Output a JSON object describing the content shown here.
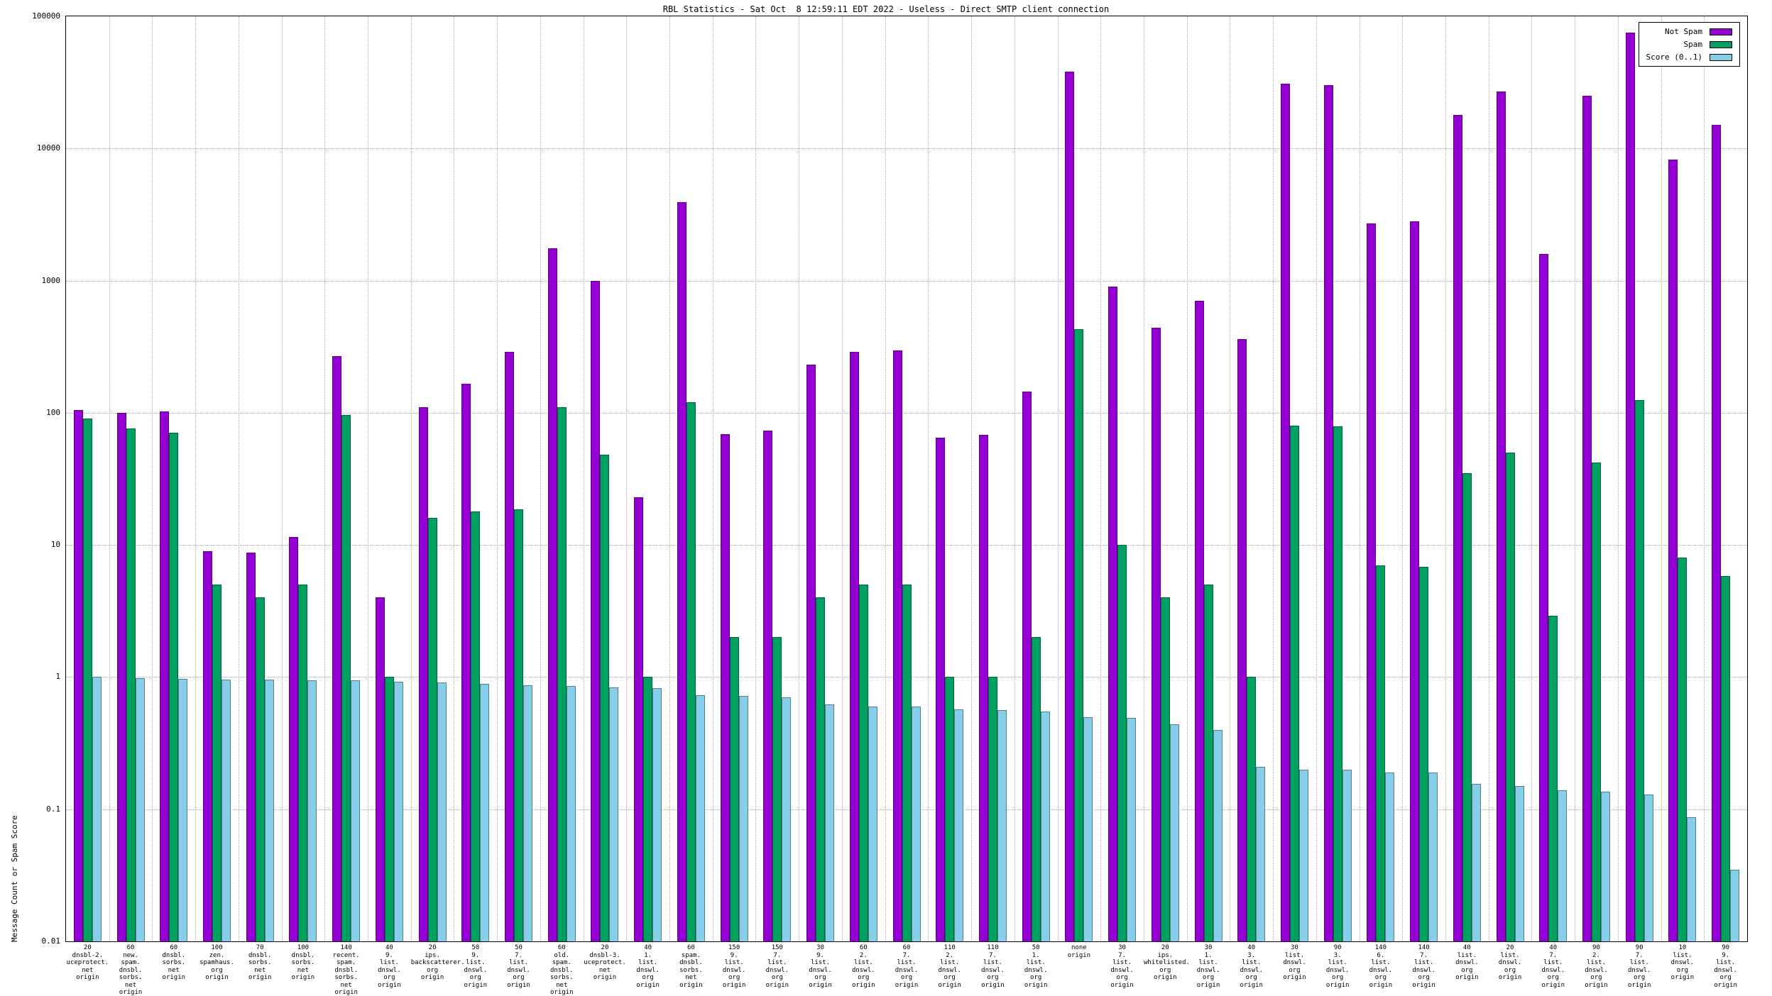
{
  "chart_data": {
    "type": "bar",
    "title": "RBL Statistics - Sat Oct  8 12:59:11 EDT 2022 - Useless - Direct SMTP client connection",
    "ylabel": "Message Count or Spam Score",
    "xlabel": "",
    "scale": "log",
    "ylim": [
      0.01,
      100000
    ],
    "yticks": [
      "100000",
      "10000",
      "1000",
      "100",
      "10",
      "1",
      "0.1",
      "0.01"
    ],
    "grid": true,
    "legend_position": "top-right",
    "categories": [
      [
        "20",
        "dnsbl-2.",
        "uceprotect.",
        "net",
        "origin"
      ],
      [
        "60",
        "new.",
        "spam.",
        "dnsbl.",
        "sorbs.",
        "net",
        "origin"
      ],
      [
        "60",
        "dnsbl.",
        "sorbs.",
        "net",
        "origin"
      ],
      [
        "100",
        "zen.",
        "spamhaus.",
        "org",
        "origin"
      ],
      [
        "70",
        "dnsbl.",
        "sorbs.",
        "net",
        "origin"
      ],
      [
        "100",
        "dnsbl.",
        "sorbs.",
        "net",
        "origin"
      ],
      [
        "140",
        "recent.",
        "spam.",
        "dnsbl.",
        "sorbs.",
        "net",
        "origin"
      ],
      [
        "40",
        "9.",
        "list.",
        "dnswl.",
        "org",
        "origin"
      ],
      [
        "20",
        "ips.",
        "backscatterer.",
        "org",
        "origin"
      ],
      [
        "50",
        "9.",
        "list.",
        "dnswl.",
        "org",
        "origin"
      ],
      [
        "50",
        "7.",
        "list.",
        "dnswl.",
        "org",
        "origin"
      ],
      [
        "60",
        "old.",
        "spam.",
        "dnsbl.",
        "sorbs.",
        "net",
        "origin"
      ],
      [
        "20",
        "dnsbl-3.",
        "uceprotect.",
        "net",
        "origin"
      ],
      [
        "40",
        "1.",
        "list.",
        "dnswl.",
        "org",
        "origin"
      ],
      [
        "60",
        "spam.",
        "dnsbl.",
        "sorbs.",
        "net",
        "origin"
      ],
      [
        "150",
        "9.",
        "list.",
        "dnswl.",
        "org",
        "origin"
      ],
      [
        "150",
        "7.",
        "list.",
        "dnswl.",
        "org",
        "origin"
      ],
      [
        "30",
        "9.",
        "list.",
        "dnswl.",
        "org",
        "origin"
      ],
      [
        "60",
        "2.",
        "list.",
        "dnswl.",
        "org",
        "origin"
      ],
      [
        "60",
        "7.",
        "list.",
        "dnswl.",
        "org",
        "origin"
      ],
      [
        "110",
        "2.",
        "list.",
        "dnswl.",
        "org",
        "origin"
      ],
      [
        "110",
        "7.",
        "list.",
        "dnswl.",
        "org",
        "origin"
      ],
      [
        "50",
        "1.",
        "list.",
        "dnswl.",
        "org",
        "origin"
      ],
      [
        "none",
        "origin"
      ],
      [
        "30",
        "7.",
        "list.",
        "dnswl.",
        "org",
        "origin"
      ],
      [
        "20",
        "ips.",
        "whitelisted.",
        "org",
        "origin"
      ],
      [
        "30",
        "1.",
        "list.",
        "dnswl.",
        "org",
        "origin"
      ],
      [
        "40",
        "3.",
        "list.",
        "dnswl.",
        "org",
        "origin"
      ],
      [
        "30",
        "list.",
        "dnswl.",
        "org",
        "origin"
      ],
      [
        "90",
        "3.",
        "list.",
        "dnswl.",
        "org",
        "origin"
      ],
      [
        "140",
        "6.",
        "list.",
        "dnswl.",
        "org",
        "origin"
      ],
      [
        "140",
        "7.",
        "list.",
        "dnswl.",
        "org",
        "origin"
      ],
      [
        "40",
        "list.",
        "dnswl.",
        "org",
        "origin"
      ],
      [
        "20",
        "list.",
        "dnswl.",
        "org",
        "origin"
      ],
      [
        "40",
        "7.",
        "list.",
        "dnswl.",
        "org",
        "origin"
      ],
      [
        "90",
        "2.",
        "list.",
        "dnswl.",
        "org",
        "origin"
      ],
      [
        "90",
        "7.",
        "list.",
        "dnswl.",
        "org",
        "origin"
      ],
      [
        "10",
        "list.",
        "dnswl.",
        "org",
        "origin"
      ],
      [
        "90",
        "9.",
        "list.",
        "dnswl.",
        "org",
        "origin"
      ]
    ],
    "series": [
      {
        "name": "Not Spam",
        "color": "#9400d3",
        "values": [
          105,
          100,
          102,
          9,
          8.7,
          11.5,
          270,
          4,
          110,
          165,
          290,
          1750,
          1000,
          23,
          3900,
          69,
          73,
          230,
          290,
          295,
          65,
          68,
          145,
          38000,
          900,
          440,
          700,
          360,
          31000,
          30000,
          2700,
          2800,
          18000,
          27000,
          1600,
          25000,
          75000,
          8200,
          15000
        ]
      },
      {
        "name": "Spam",
        "color": "#00a060",
        "values": [
          90,
          76,
          71,
          5,
          4,
          5,
          96,
          1,
          16,
          18,
          18.5,
          110,
          48,
          1,
          120,
          2,
          2,
          4,
          5,
          5,
          1,
          1,
          2,
          430,
          10,
          4,
          5,
          1,
          80,
          79,
          7,
          6.8,
          35,
          50,
          2.9,
          42,
          125,
          8,
          5.8
        ]
      },
      {
        "name": "Score (0..1)",
        "color": "#87ceeb",
        "values": [
          1.0,
          0.98,
          0.97,
          0.96,
          0.96,
          0.95,
          0.95,
          0.92,
          0.91,
          0.89,
          0.87,
          0.86,
          0.84,
          0.82,
          0.73,
          0.72,
          0.7,
          0.62,
          0.6,
          0.6,
          0.57,
          0.56,
          0.55,
          0.5,
          0.49,
          0.44,
          0.4,
          0.21,
          0.2,
          0.2,
          0.19,
          0.19,
          0.155,
          0.15,
          0.14,
          0.135,
          0.13,
          0.087,
          0.035
        ]
      }
    ]
  }
}
